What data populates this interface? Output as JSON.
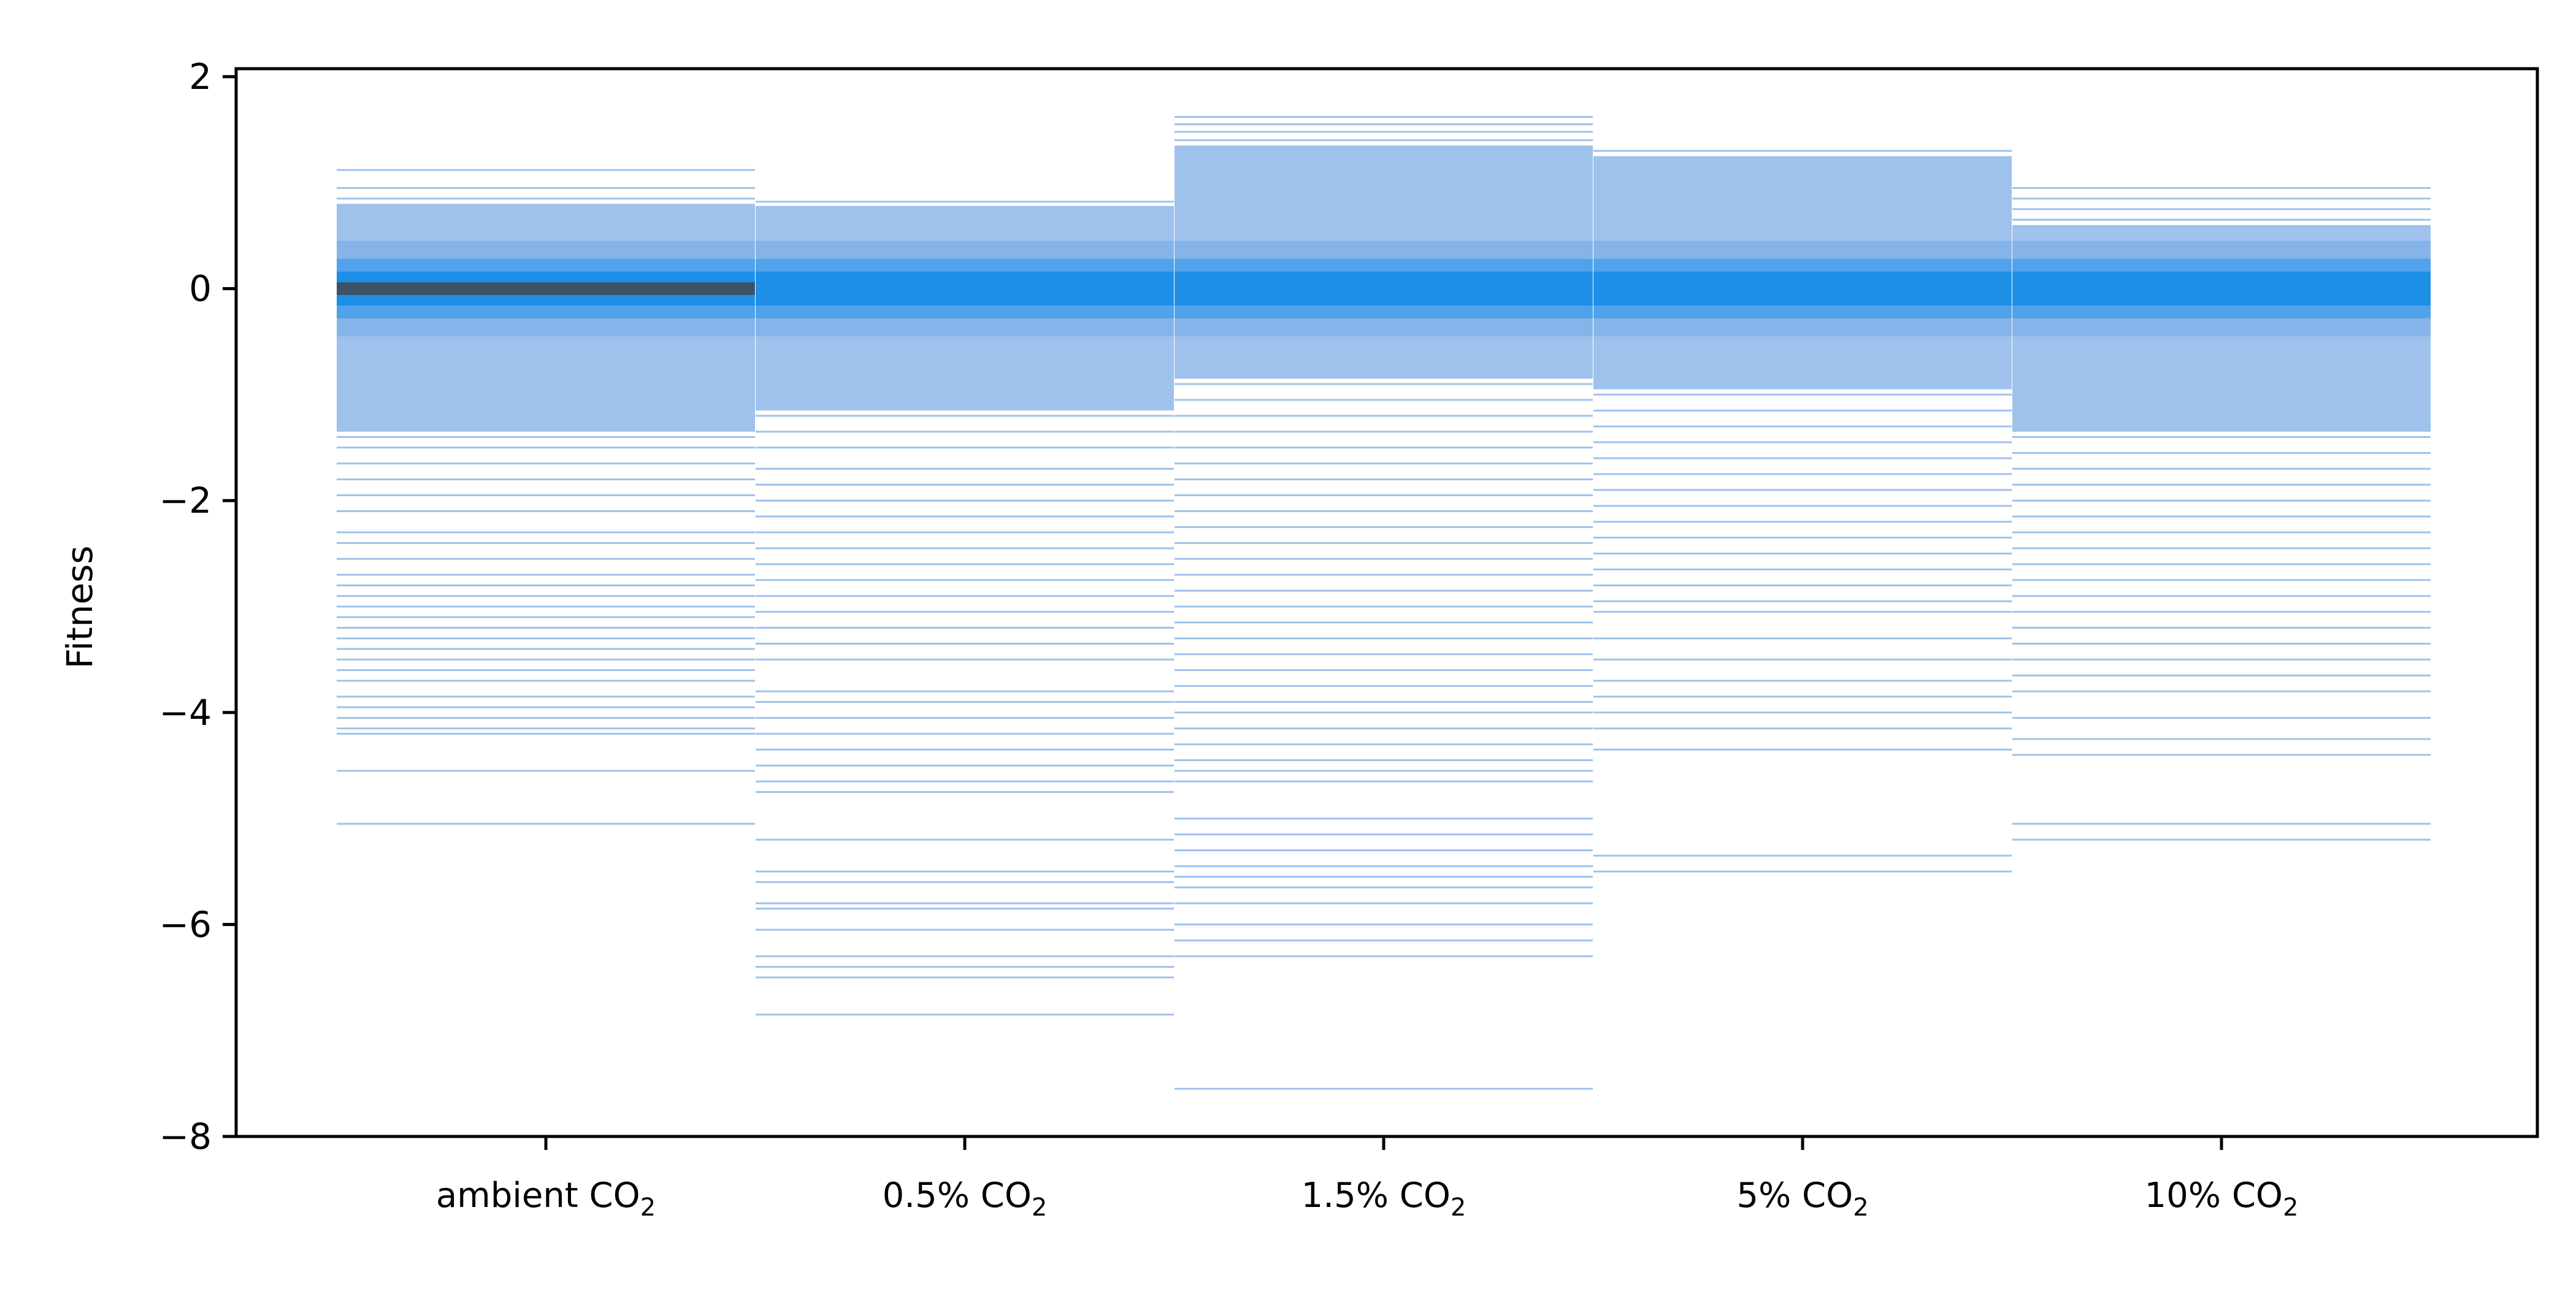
{
  "chart_data": {
    "type": "strip",
    "ylabel": "Fitness",
    "ylim": [
      -8,
      2
    ],
    "yticks": [
      2,
      0,
      -2,
      -4,
      -6,
      -8
    ],
    "ytick_labels": [
      "2",
      "0",
      "−2",
      "−4",
      "−6",
      "−8"
    ],
    "categories": [
      {
        "base": "ambient CO",
        "sub": "2"
      },
      {
        "base": "0.5% CO",
        "sub": "2"
      },
      {
        "base": "1.5% CO",
        "sub": "2"
      },
      {
        "base": "5% CO",
        "sub": "2"
      },
      {
        "base": "10% CO",
        "sub": "2"
      }
    ],
    "colors": {
      "line": "#9ec2ec",
      "dense": "#1e8fe6",
      "densest": "#3d5266",
      "axis": "#000000"
    },
    "groups": [
      {
        "category": "ambient CO2",
        "min": -5.05,
        "max": 1.12,
        "center": 0.0,
        "dense_top": 0.8,
        "dense_bottom": -1.35,
        "darkest": true,
        "sparse_values": [
          1.12,
          0.95,
          0.85,
          -1.4,
          -1.5,
          -1.65,
          -1.8,
          -1.95,
          -2.1,
          -2.3,
          -2.4,
          -2.55,
          -2.7,
          -2.8,
          -2.9,
          -3.0,
          -3.1,
          -3.2,
          -3.3,
          -3.4,
          -3.5,
          -3.6,
          -3.7,
          -3.85,
          -3.95,
          -4.05,
          -4.15,
          -4.2,
          -4.55,
          -5.05
        ]
      },
      {
        "category": "0.5% CO2",
        "min": -6.85,
        "max": 0.82,
        "center": 0.0,
        "dense_top": 0.78,
        "dense_bottom": -1.15,
        "darkest": false,
        "sparse_values": [
          0.82,
          0.7,
          0.6,
          -1.2,
          -1.35,
          -1.5,
          -1.7,
          -1.85,
          -2.0,
          -2.15,
          -2.3,
          -2.45,
          -2.6,
          -2.75,
          -2.9,
          -3.05,
          -3.2,
          -3.35,
          -3.5,
          -3.8,
          -3.9,
          -4.05,
          -4.2,
          -4.35,
          -4.5,
          -4.65,
          -4.75,
          -5.2,
          -5.5,
          -5.6,
          -5.8,
          -5.85,
          -6.05,
          -6.3,
          -6.4,
          -6.5,
          -6.85
        ]
      },
      {
        "category": "1.5% CO2",
        "min": -7.55,
        "max": 1.62,
        "center": 0.0,
        "dense_top": 1.35,
        "dense_bottom": -0.85,
        "darkest": false,
        "sparse_values": [
          1.62,
          1.55,
          1.48,
          1.4,
          -0.9,
          -1.05,
          -1.2,
          -1.35,
          -1.5,
          -1.65,
          -1.8,
          -1.95,
          -2.1,
          -2.25,
          -2.4,
          -2.55,
          -2.7,
          -2.85,
          -3.0,
          -3.15,
          -3.3,
          -3.45,
          -3.6,
          -3.75,
          -3.9,
          -4.0,
          -4.15,
          -4.3,
          -4.45,
          -4.55,
          -4.65,
          -5.0,
          -5.15,
          -5.3,
          -5.45,
          -5.55,
          -5.65,
          -5.8,
          -6.0,
          -6.15,
          -6.3,
          -7.55
        ]
      },
      {
        "category": "5% CO2",
        "min": -5.5,
        "max": 1.3,
        "center": 0.0,
        "dense_top": 1.25,
        "dense_bottom": -0.95,
        "darkest": false,
        "sparse_values": [
          1.3,
          1.22,
          -1.0,
          -1.15,
          -1.3,
          -1.45,
          -1.6,
          -1.75,
          -1.9,
          -2.05,
          -2.2,
          -2.35,
          -2.5,
          -2.65,
          -2.8,
          -2.95,
          -3.05,
          -3.3,
          -3.5,
          -3.7,
          -3.85,
          -4.0,
          -4.15,
          -4.35,
          -5.35,
          -5.5
        ]
      },
      {
        "category": "10% CO2",
        "min": -5.2,
        "max": 0.95,
        "center": 0.0,
        "dense_top": 0.6,
        "dense_bottom": -1.35,
        "darkest": false,
        "sparse_values": [
          0.95,
          0.85,
          0.75,
          0.65,
          -1.4,
          -1.55,
          -1.7,
          -1.85,
          -2.0,
          -2.15,
          -2.3,
          -2.45,
          -2.6,
          -2.75,
          -2.9,
          -3.05,
          -3.2,
          -3.35,
          -3.5,
          -3.65,
          -3.8,
          -4.05,
          -4.25,
          -4.4,
          -5.05,
          -5.2
        ]
      }
    ]
  }
}
